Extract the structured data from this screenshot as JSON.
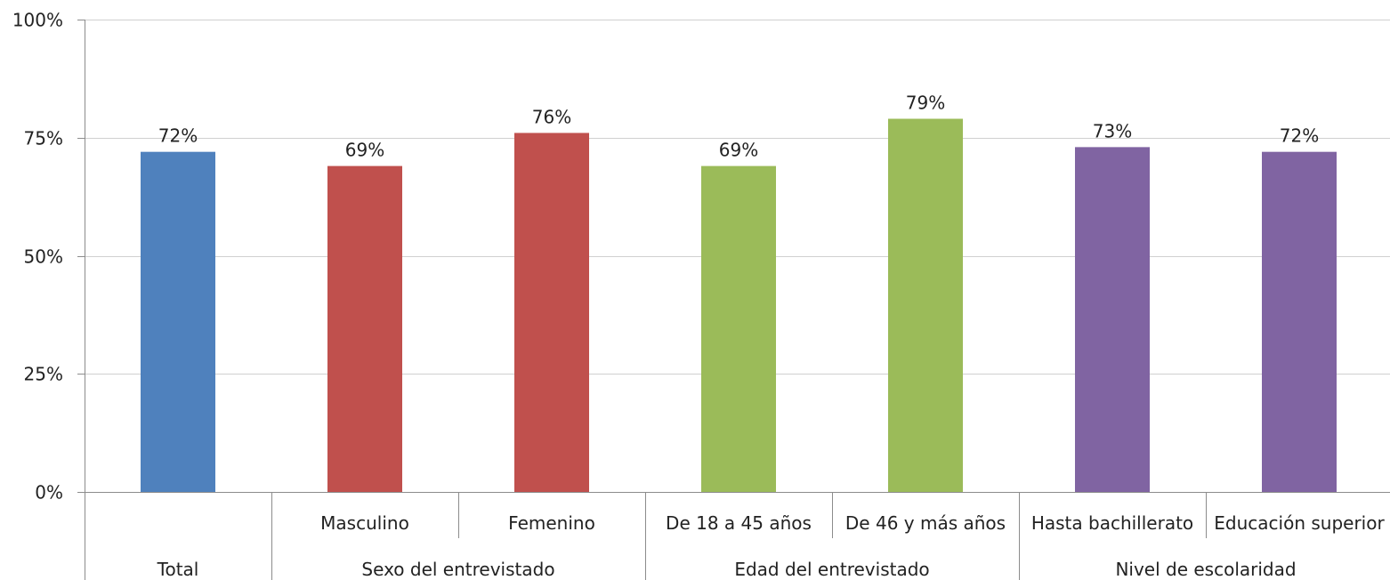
{
  "chart_data": {
    "type": "bar",
    "categories": [
      "Total",
      "Masculino",
      "Femenino",
      "De 18 a 45 años",
      "De 46 y más años",
      "Hasta bachillerato",
      "Educación superior"
    ],
    "values": [
      72,
      69,
      76,
      69,
      79,
      73,
      72
    ],
    "data_labels": [
      "72%",
      "69%",
      "76%",
      "69%",
      "79%",
      "73%",
      "72%"
    ],
    "groups": [
      {
        "label": "Total",
        "categories": [
          "Total"
        ]
      },
      {
        "label": "Sexo del entrevistado",
        "categories": [
          "Masculino",
          "Femenino"
        ]
      },
      {
        "label": "Edad del entrevistado",
        "categories": [
          "De 18 a 45 años",
          "De 46 y más años"
        ]
      },
      {
        "label": "Nivel de escolaridad",
        "categories": [
          "Hasta bachillerato",
          "Educación superior"
        ]
      }
    ],
    "subcategory_labels": [
      "",
      "Masculino",
      "Femenino",
      "De 18 a 45 años",
      "De 46 y más años",
      "Hasta bachillerato",
      "Educación superior"
    ],
    "colors": [
      "#4F81BD",
      "#C0504D",
      "#C0504D",
      "#9BBB59",
      "#9BBB59",
      "#8064A2",
      "#8064A2"
    ],
    "yticks": [
      0,
      25,
      50,
      75,
      100
    ],
    "ytick_labels": [
      "0%",
      "25%",
      "50%",
      "75%",
      "100%"
    ],
    "ylim": [
      0,
      100
    ],
    "grid": true,
    "title": "",
    "xlabel": "",
    "ylabel": ""
  }
}
